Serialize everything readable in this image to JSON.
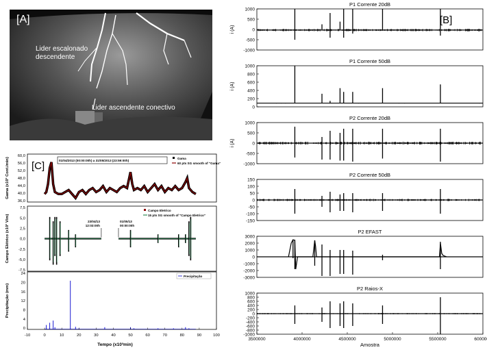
{
  "panel_a": {
    "label": "[A]",
    "annotation_1_line1": "Lider escalonado",
    "annotation_1_line2": "descendente",
    "annotation_2": "Lider ascendente conectivo"
  },
  "panel_b": {
    "label": "[B]",
    "xlabel": "Amostra"
  },
  "panel_c": {
    "label": "[C]",
    "date_range": "01/04/2013 (00:00:00h) a 31/05/2013 (23:59:00h)",
    "marker_1_line1": "23/04/13",
    "marker_1_line2": "12:03:00h",
    "marker_2_line1": "01/05/13",
    "marker_2_line2": "00:00:00h",
    "xlabel": "Tempo (x10³min)"
  },
  "chart_data": [
    {
      "type": "line",
      "title": "P1 Corrente 20dB",
      "ylabel": "i (A)",
      "xlim": [
        3500000,
        6000000
      ],
      "ylim": [
        -1000,
        1000
      ],
      "yticks": [
        "1000",
        "500",
        "0",
        "-500",
        "-1000"
      ],
      "baseline": -30,
      "noise": 60,
      "spikes": [
        [
          3920000,
          1000,
          -500
        ],
        [
          4220000,
          250,
          0
        ],
        [
          4310000,
          800,
          -400
        ],
        [
          4420000,
          380,
          0
        ],
        [
          4460000,
          1000,
          -400
        ],
        [
          4560000,
          1000,
          -200
        ],
        [
          4890000,
          1000,
          0
        ],
        [
          5530000,
          1000,
          -300
        ]
      ]
    },
    {
      "type": "line",
      "title": "P1 Corrente 50dB",
      "ylabel": "i (A)",
      "xlim": [
        3500000,
        6000000
      ],
      "ylim": [
        -100,
        1000
      ],
      "yticks": [
        "1000",
        "800",
        "600",
        "400",
        "200",
        "0"
      ],
      "baseline": 0,
      "noise": 10,
      "spikes": [
        [
          3920000,
          1000,
          0
        ],
        [
          4220000,
          250,
          0
        ],
        [
          4310000,
          60,
          0
        ],
        [
          4420000,
          400,
          0
        ],
        [
          4460000,
          300,
          0
        ],
        [
          4560000,
          300,
          0
        ],
        [
          4890000,
          400,
          0
        ],
        [
          5530000,
          500,
          0
        ]
      ]
    },
    {
      "type": "line",
      "title": "P2 Corrente 20dB",
      "ylabel": "i (A)",
      "xlim": [
        3500000,
        6000000
      ],
      "ylim": [
        -1000,
        1000
      ],
      "yticks": [
        "1000",
        "500",
        "0",
        "-500",
        "-1000"
      ],
      "baseline": 0,
      "noise": 70,
      "spikes": [
        [
          3920000,
          800,
          -700
        ],
        [
          4220000,
          300,
          -800
        ],
        [
          4310000,
          600,
          -800
        ],
        [
          4420000,
          500,
          -850
        ],
        [
          4460000,
          700,
          -850
        ],
        [
          4560000,
          700,
          -900
        ],
        [
          4890000,
          700,
          -750
        ],
        [
          5530000,
          700,
          -900
        ]
      ]
    },
    {
      "type": "line",
      "title": "P2 Corrente 50dB",
      "ylabel": "",
      "xlim": [
        3500000,
        6000000
      ],
      "ylim": [
        -150,
        150
      ],
      "yticks": [
        "150",
        "100",
        "50",
        "0",
        "-50",
        "-100",
        "-150"
      ],
      "baseline": 0,
      "noise": 8,
      "spikes": [
        [
          3920000,
          80,
          -100
        ],
        [
          4220000,
          30,
          -50
        ],
        [
          4310000,
          60,
          -90
        ],
        [
          4420000,
          40,
          -80
        ],
        [
          4460000,
          50,
          -80
        ],
        [
          4560000,
          50,
          -90
        ],
        [
          4890000,
          50,
          -80
        ],
        [
          5530000,
          80,
          -100
        ]
      ]
    },
    {
      "type": "line",
      "title": "P2 EFAST",
      "ylabel": "",
      "xlim": [
        3500000,
        6000000
      ],
      "ylim": [
        -3000,
        3000
      ],
      "yticks": [
        "3000",
        "2000",
        "1000",
        "0",
        "-1000",
        "-2000",
        "-3000"
      ],
      "baseline": 0,
      "noise": 40,
      "spikes": [
        [
          3900000,
          2500,
          -200
        ],
        [
          3920000,
          2500,
          -1800
        ],
        [
          4140000,
          2400,
          -1300
        ],
        [
          4220000,
          1800,
          -2800
        ],
        [
          4310000,
          1000,
          -2800
        ],
        [
          4420000,
          1000,
          -2500
        ],
        [
          4460000,
          1000,
          -2500
        ],
        [
          4560000,
          900,
          -2600
        ],
        [
          4890000,
          300,
          -500
        ],
        [
          5530000,
          2200,
          -1800
        ]
      ]
    },
    {
      "type": "line",
      "title": "P2 Raios-X",
      "ylabel": "",
      "xlim": [
        3500000,
        6000000
      ],
      "ylim": [
        -1000,
        1000
      ],
      "yticks": [
        "1000",
        "800",
        "600",
        "400",
        "200",
        "0",
        "-200",
        "-400",
        "-600",
        "-800",
        "-1000"
      ],
      "xticks": [
        3500000,
        4000000,
        4500000,
        5000000,
        5500000,
        6000000
      ],
      "baseline": 0,
      "noise": 30,
      "spikes": [
        [
          3920000,
          400,
          -500
        ],
        [
          4220000,
          300,
          -400
        ],
        [
          4310000,
          600,
          -700
        ],
        [
          4420000,
          500,
          -600
        ],
        [
          4460000,
          600,
          -700
        ],
        [
          4560000,
          500,
          -600
        ],
        [
          4890000,
          400,
          -500
        ],
        [
          5530000,
          800,
          -1000
        ]
      ]
    },
    {
      "type": "line",
      "ylabel": "Gama (x10³ Cont./min)",
      "xlim": [
        -10,
        100
      ],
      "ylim": [
        36,
        60
      ],
      "yticks": [
        "60,0",
        "56,0",
        "52,0",
        "48,0",
        "44,0",
        "40,0",
        "36,0"
      ],
      "series": [
        {
          "name": "Gama"
        },
        {
          "name": "60 pts SG smooth of \"Gama\""
        }
      ],
      "points": [
        [
          0,
          40
        ],
        [
          1,
          41
        ],
        [
          2,
          45
        ],
        [
          3,
          53
        ],
        [
          4,
          56
        ],
        [
          5,
          45
        ],
        [
          6,
          41
        ],
        [
          8,
          40
        ],
        [
          10,
          40
        ],
        [
          12,
          41
        ],
        [
          14,
          42
        ],
        [
          16,
          40
        ],
        [
          18,
          38
        ],
        [
          20,
          41
        ],
        [
          22,
          42
        ],
        [
          24,
          40
        ],
        [
          26,
          42
        ],
        [
          28,
          43
        ],
        [
          30,
          41
        ],
        [
          32,
          42
        ],
        [
          34,
          44
        ],
        [
          36,
          41
        ],
        [
          38,
          43
        ],
        [
          40,
          42
        ],
        [
          42,
          41
        ],
        [
          44,
          43
        ],
        [
          46,
          44
        ],
        [
          48,
          43
        ],
        [
          50,
          51
        ],
        [
          51,
          45
        ],
        [
          52,
          42
        ],
        [
          54,
          43
        ],
        [
          56,
          42
        ],
        [
          58,
          44
        ],
        [
          60,
          41
        ],
        [
          62,
          43
        ],
        [
          64,
          45
        ],
        [
          66,
          42
        ],
        [
          68,
          44
        ],
        [
          70,
          41
        ],
        [
          72,
          43
        ],
        [
          74,
          42
        ],
        [
          76,
          44
        ],
        [
          78,
          42
        ],
        [
          80,
          43
        ],
        [
          82,
          46
        ],
        [
          83,
          48
        ],
        [
          84,
          43
        ],
        [
          86,
          41
        ],
        [
          88,
          40
        ]
      ]
    },
    {
      "type": "line",
      "ylabel": "Campo Elétrico (x10³ V/m)",
      "xlim": [
        -10,
        100
      ],
      "ylim": [
        -7.5,
        7.5
      ],
      "yticks": [
        "7,5",
        "5,0",
        "2,5",
        "0,0",
        "-2,5",
        "-5,0",
        "-7,5"
      ],
      "series": [
        {
          "name": "Campo Eletrico"
        },
        {
          "name": "15 pts SG smooth of \"Campo Eletrico\""
        }
      ],
      "gap": [
        33,
        43
      ],
      "spikes": [
        [
          3,
          5,
          -5
        ],
        [
          5,
          4,
          -6
        ],
        [
          6,
          5,
          -4
        ],
        [
          7,
          5,
          -6
        ],
        [
          9,
          4,
          -4
        ],
        [
          14,
          2,
          -3
        ],
        [
          18,
          1,
          -2
        ],
        [
          50,
          2,
          -2
        ],
        [
          66,
          1,
          -1
        ],
        [
          78,
          1,
          -2
        ],
        [
          82,
          1,
          -1
        ],
        [
          84,
          4,
          -4
        ],
        [
          85,
          5,
          -5
        ]
      ],
      "baseline": 0
    },
    {
      "type": "bar",
      "ylabel": "Precipitação (mm)",
      "xlabel": "Tempo (x10³min)",
      "xlim": [
        -10,
        100
      ],
      "ylim": [
        0,
        26
      ],
      "yticks": [
        "24",
        "20",
        "16",
        "12",
        "8",
        "4",
        "0"
      ],
      "xticks": [
        "-10",
        "0",
        "10",
        "20",
        "30",
        "40",
        "50",
        "60",
        "70",
        "80",
        "90",
        "100"
      ],
      "series": [
        {
          "name": "Precipitação"
        }
      ],
      "x": [
        1,
        3,
        5,
        6,
        15,
        18,
        20,
        35,
        50,
        52,
        66,
        75,
        82,
        84
      ],
      "values": [
        2,
        3,
        4,
        1,
        22,
        1.2,
        0.5,
        1,
        1,
        0.5,
        0.5,
        0.5,
        1,
        0.5
      ]
    }
  ]
}
